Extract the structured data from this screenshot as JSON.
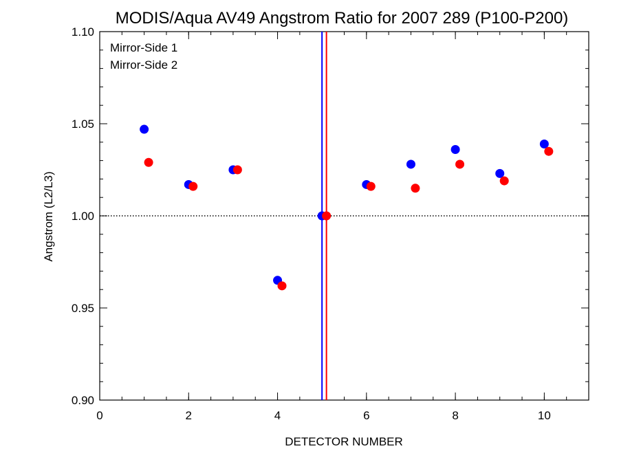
{
  "chart_data": {
    "type": "scatter",
    "title": "MODIS/Aqua AV49 Angstrom Ratio for 2007 289 (P100-P200)",
    "xlabel": "DETECTOR NUMBER",
    "ylabel": "Angstrom (L2/L3)",
    "xlim": [
      0,
      11
    ],
    "ylim": [
      0.9,
      1.1
    ],
    "x_ticks": [
      0,
      2,
      4,
      6,
      8,
      10
    ],
    "x_tick_labels": [
      "0",
      "2",
      "4",
      "6",
      "8",
      "10"
    ],
    "x_minor_step": 0.5,
    "y_ticks": [
      0.9,
      0.95,
      1.0,
      1.05,
      1.1
    ],
    "y_tick_labels": [
      "0.90",
      "0.95",
      "1.00",
      "1.05",
      "1.10"
    ],
    "y_minor_step": 0.01,
    "grid": false,
    "legend_position": "top-left",
    "reference_hline": 1.0,
    "series": [
      {
        "name": "Mirror-Side 1",
        "color": "#0000ff",
        "x": [
          1,
          2,
          3,
          4,
          5,
          6,
          7,
          8,
          9,
          10
        ],
        "y": [
          1.047,
          1.017,
          1.025,
          0.965,
          1.0,
          1.017,
          1.028,
          1.036,
          1.023,
          1.039
        ],
        "vline_x": 5.0
      },
      {
        "name": "Mirror-Side 2",
        "color": "#ff0000",
        "x": [
          1.1,
          2.1,
          3.1,
          4.1,
          5.1,
          6.1,
          7.1,
          8.1,
          9.1,
          10.1
        ],
        "y": [
          1.029,
          1.016,
          1.025,
          0.962,
          1.0,
          1.016,
          1.015,
          1.028,
          1.019,
          1.035
        ],
        "vline_x": 5.1
      }
    ]
  }
}
